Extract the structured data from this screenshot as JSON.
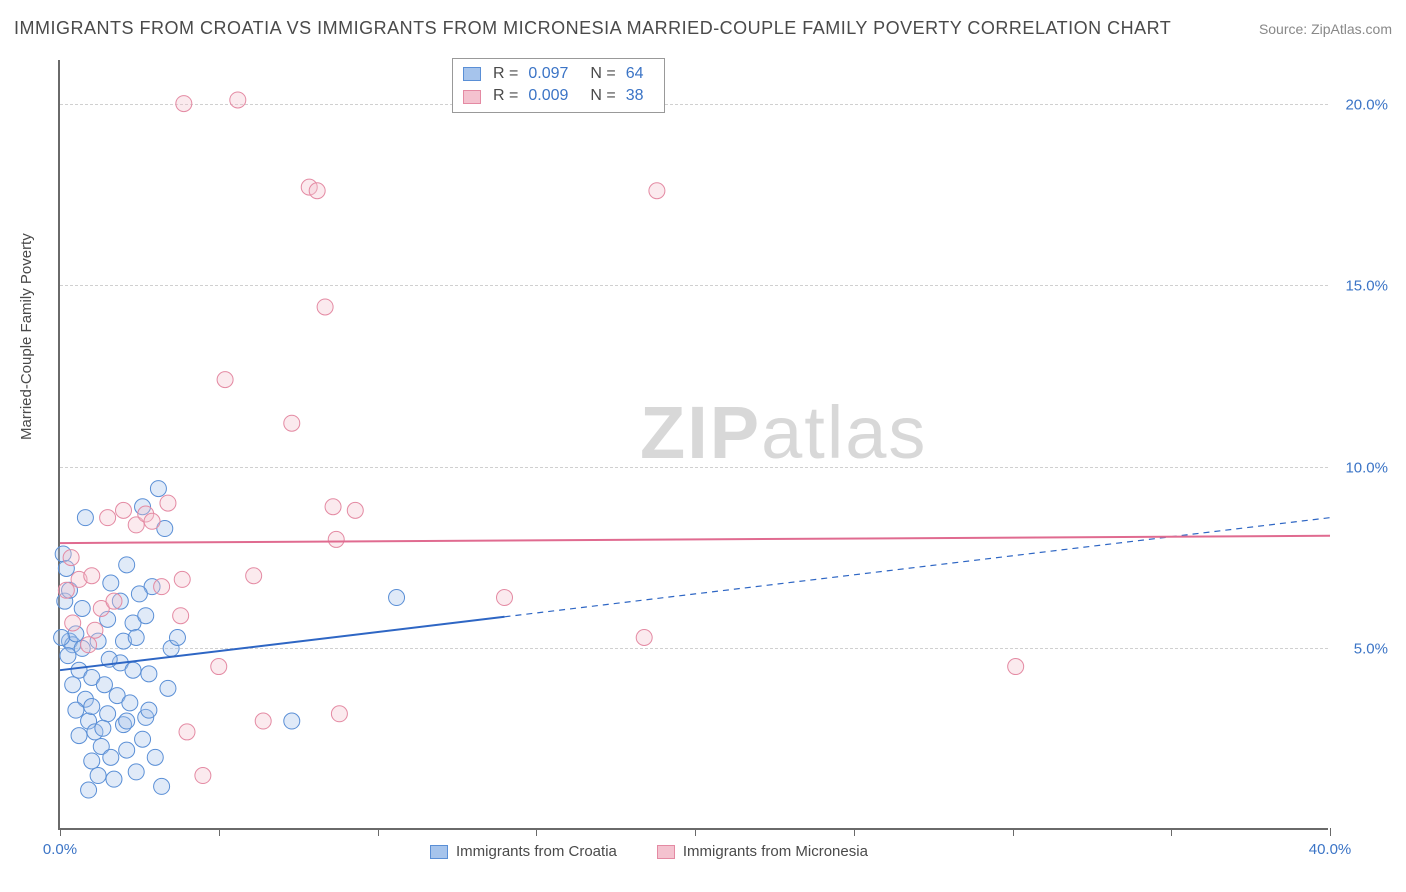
{
  "header": {
    "title": "IMMIGRANTS FROM CROATIA VS IMMIGRANTS FROM MICRONESIA MARRIED-COUPLE FAMILY POVERTY CORRELATION CHART",
    "source": "Source: ZipAtlas.com"
  },
  "watermark": {
    "bold_part": "ZIP",
    "light_part": "atlas"
  },
  "chart": {
    "type": "scatter-correlation",
    "ylabel": "Married-Couple Family Poverty",
    "xlim": [
      0,
      40
    ],
    "ylim": [
      0,
      21.2
    ],
    "yticks": [
      {
        "value": 5,
        "label": "5.0%"
      },
      {
        "value": 10,
        "label": "10.0%"
      },
      {
        "value": 15,
        "label": "15.0%"
      },
      {
        "value": 20,
        "label": "20.0%"
      }
    ],
    "xticks": [
      0,
      5,
      10,
      15,
      20,
      25,
      30,
      35,
      40
    ],
    "xtick_labels": {
      "0": "0.0%",
      "40": "40.0%"
    },
    "background_color": "#ffffff",
    "grid_color": "#d0d0d0",
    "axis_color": "#6a6a6a",
    "tick_label_color": "#3b74c6",
    "marker_radius": 8,
    "marker_fill_opacity": 0.35,
    "marker_stroke_width": 1,
    "series": [
      {
        "name": "Immigrants from Croatia",
        "color_fill": "#a6c4ec",
        "color_stroke": "#5a8fd6",
        "line_color": "#2e66c4",
        "line_width": 2,
        "r_value": "0.097",
        "n_value": "64",
        "trend": {
          "x1": 0,
          "y1": 4.4,
          "x2": 40,
          "y2": 8.6,
          "solid_until_x": 14
        },
        "points": [
          [
            0.1,
            7.6
          ],
          [
            0.2,
            7.2
          ],
          [
            0.3,
            5.2
          ],
          [
            0.15,
            6.3
          ],
          [
            0.4,
            5.1
          ],
          [
            0.25,
            4.8
          ],
          [
            0.5,
            5.4
          ],
          [
            0.3,
            6.6
          ],
          [
            0.6,
            4.4
          ],
          [
            0.7,
            5.0
          ],
          [
            0.8,
            3.6
          ],
          [
            0.9,
            3.0
          ],
          [
            1.0,
            3.4
          ],
          [
            1.1,
            2.7
          ],
          [
            1.3,
            2.3
          ],
          [
            1.0,
            4.2
          ],
          [
            1.2,
            5.2
          ],
          [
            1.4,
            4.0
          ],
          [
            1.5,
            3.2
          ],
          [
            1.6,
            2.0
          ],
          [
            1.7,
            1.4
          ],
          [
            1.8,
            3.7
          ],
          [
            1.9,
            4.6
          ],
          [
            2.0,
            2.9
          ],
          [
            2.1,
            2.2
          ],
          [
            2.2,
            3.5
          ],
          [
            2.3,
            5.7
          ],
          [
            2.4,
            1.6
          ],
          [
            2.6,
            2.5
          ],
          [
            2.7,
            3.1
          ],
          [
            2.8,
            4.3
          ],
          [
            3.0,
            2.0
          ],
          [
            3.1,
            9.4
          ],
          [
            3.2,
            1.2
          ],
          [
            0.4,
            4.0
          ],
          [
            0.7,
            6.1
          ],
          [
            1.6,
            6.8
          ],
          [
            2.0,
            5.2
          ],
          [
            2.1,
            3.0
          ],
          [
            2.1,
            7.3
          ],
          [
            2.4,
            5.3
          ],
          [
            2.6,
            8.9
          ],
          [
            2.7,
            5.9
          ],
          [
            2.9,
            6.7
          ],
          [
            3.3,
            8.3
          ],
          [
            3.5,
            5.0
          ],
          [
            0.05,
            5.3
          ],
          [
            0.9,
            1.1
          ],
          [
            1.0,
            1.9
          ],
          [
            1.2,
            1.5
          ],
          [
            1.35,
            2.8
          ],
          [
            1.5,
            5.8
          ],
          [
            1.55,
            4.7
          ],
          [
            1.9,
            6.3
          ],
          [
            3.4,
            3.9
          ],
          [
            0.6,
            2.6
          ],
          [
            0.5,
            3.3
          ],
          [
            2.3,
            4.4
          ],
          [
            2.5,
            6.5
          ],
          [
            2.8,
            3.3
          ],
          [
            3.7,
            5.3
          ],
          [
            7.3,
            3.0
          ],
          [
            10.6,
            6.4
          ],
          [
            0.8,
            8.6
          ]
        ]
      },
      {
        "name": "Immigrants from Micronesia",
        "color_fill": "#f4c2cf",
        "color_stroke": "#e48aa3",
        "line_color": "#e06b90",
        "line_width": 2,
        "r_value": "0.009",
        "n_value": "38",
        "trend": {
          "x1": 0,
          "y1": 7.9,
          "x2": 40,
          "y2": 8.1,
          "solid_until_x": 40
        },
        "points": [
          [
            0.2,
            6.6
          ],
          [
            0.35,
            7.5
          ],
          [
            0.4,
            5.7
          ],
          [
            0.6,
            6.9
          ],
          [
            0.9,
            5.1
          ],
          [
            1.0,
            7.0
          ],
          [
            1.1,
            5.5
          ],
          [
            1.3,
            6.1
          ],
          [
            1.5,
            8.6
          ],
          [
            1.7,
            6.3
          ],
          [
            2.0,
            8.8
          ],
          [
            2.4,
            8.4
          ],
          [
            2.7,
            8.7
          ],
          [
            2.9,
            8.5
          ],
          [
            3.4,
            9.0
          ],
          [
            3.8,
            5.9
          ],
          [
            3.85,
            6.9
          ],
          [
            4.5,
            1.5
          ],
          [
            5.0,
            4.5
          ],
          [
            6.1,
            7.0
          ],
          [
            7.3,
            11.2
          ],
          [
            7.85,
            17.7
          ],
          [
            8.1,
            17.6
          ],
          [
            8.35,
            14.4
          ],
          [
            8.6,
            8.9
          ],
          [
            8.7,
            8.0
          ],
          [
            8.8,
            3.2
          ],
          [
            3.9,
            20.0
          ],
          [
            5.6,
            20.1
          ],
          [
            5.2,
            12.4
          ],
          [
            4.0,
            2.7
          ],
          [
            6.4,
            3.0
          ],
          [
            18.4,
            5.3
          ],
          [
            18.8,
            17.6
          ],
          [
            30.1,
            4.5
          ],
          [
            14.0,
            6.4
          ],
          [
            9.3,
            8.8
          ],
          [
            3.2,
            6.7
          ]
        ]
      }
    ]
  }
}
